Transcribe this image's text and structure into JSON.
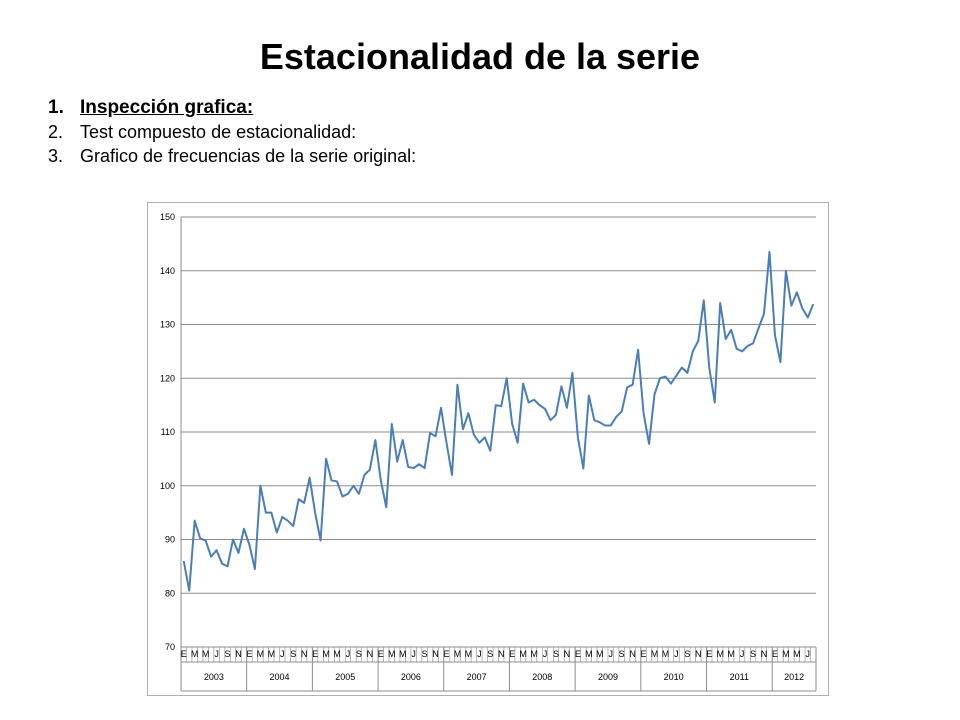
{
  "slide": {
    "title": "Estacionalidad de la serie",
    "steps": [
      {
        "num": "1.",
        "text": "Inspección grafica:"
      },
      {
        "num": "2.",
        "text": "Test compuesto de estacionalidad:"
      },
      {
        "num": "3.",
        "text": "Grafico de frecuencias de la serie original:"
      }
    ]
  },
  "chart_data": {
    "type": "line",
    "title": "",
    "xlabel": "",
    "ylabel": "",
    "ylim": [
      70,
      150
    ],
    "yticks": [
      70,
      80,
      90,
      100,
      110,
      120,
      130,
      140,
      150
    ],
    "grid": "horizontal",
    "color": "#4a7ebb",
    "month_labels": [
      "E",
      "M",
      "M",
      "J",
      "S",
      "N"
    ],
    "years": [
      "2003",
      "2004",
      "2005",
      "2006",
      "2007",
      "2008",
      "2009",
      "2010",
      "2011",
      "2012"
    ],
    "last_year_month_labels": [
      "E",
      "M",
      "M",
      "J"
    ],
    "series": [
      {
        "values": [
          86,
          80.5,
          93.5,
          90.2,
          89.8,
          86.8,
          88,
          85.5,
          85,
          90,
          87.5,
          92,
          89,
          84.5,
          100,
          95,
          95,
          91.3,
          94.2,
          93.5,
          92.5,
          97.5,
          96.8,
          101.5,
          95,
          89.8,
          105,
          101,
          100.8,
          98,
          98.5,
          100,
          98.5,
          102,
          103,
          108.5,
          101,
          96,
          111.5,
          104.5,
          108.5,
          103.5,
          103.3,
          104,
          103.3,
          109.8,
          109.2,
          114.5,
          108,
          102,
          118.8,
          110.5,
          113.5,
          109.5,
          108,
          109,
          106.5,
          115,
          114.8,
          120,
          111.5,
          108,
          119,
          115.5,
          116,
          115,
          114.3,
          112.2,
          113.2,
          118.5,
          114.5,
          121,
          109,
          103.2,
          116.8,
          112.2,
          111.8,
          111.2,
          111.2,
          112.8,
          113.8,
          118.3,
          118.8,
          125.3,
          113.5,
          107.8,
          117,
          120,
          120.3,
          119,
          120.5,
          122,
          121,
          125,
          127,
          134.5,
          122,
          115.5,
          134,
          127.3,
          129,
          125.5,
          125,
          126,
          126.5,
          129.3,
          132,
          143.5,
          128,
          123,
          140,
          133.5,
          136,
          133,
          131.3,
          133.8
        ]
      }
    ]
  }
}
